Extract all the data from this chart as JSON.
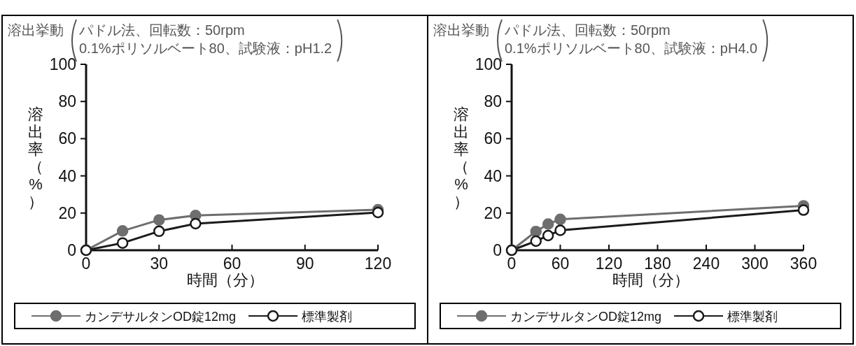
{
  "chart_data": [
    {
      "type": "line",
      "title": "溶出挙動",
      "subtitle": "パドル法、回転数：50rpm\n0.1%ポリソルベート80、試験液：pH1.2",
      "xlabel": "時間（分）",
      "ylabel": "溶出率（%）",
      "xlim": [
        0,
        120
      ],
      "xticks": [
        0,
        30,
        60,
        90,
        120
      ],
      "ylim": [
        0,
        100
      ],
      "yticks": [
        0,
        20,
        40,
        60,
        80,
        100
      ],
      "grid": false,
      "legend": "bottom",
      "marker": "circle",
      "line_style": "solid",
      "x": [
        0,
        15,
        30,
        45,
        120
      ],
      "series": [
        {
          "name": "カンデサルタンOD錠12mg",
          "color": "#6e6e6e",
          "values": [
            0,
            10.4,
            16.3,
            18.7,
            21.8
          ]
        },
        {
          "name": "標準製剤",
          "color": "#1a1a1a",
          "values": [
            0,
            3.9,
            10.2,
            14.3,
            20.3
          ]
        }
      ]
    },
    {
      "type": "line",
      "title": "溶出挙動",
      "subtitle": "パドル法、回転数：50rpm\n0.1%ポリソルベート80、試験液：pH4.0",
      "xlabel": "時間（分）",
      "ylabel": "溶出率（%）",
      "xlim": [
        0,
        360
      ],
      "xticks": [
        0,
        60,
        120,
        180,
        240,
        300,
        360
      ],
      "ylim": [
        0,
        100
      ],
      "yticks": [
        0,
        20,
        40,
        60,
        80,
        100
      ],
      "grid": false,
      "legend": "bottom",
      "marker": "circle",
      "line_style": "solid",
      "x": [
        0,
        30,
        45,
        60,
        360
      ],
      "series": [
        {
          "name": "カンデサルタンOD錠12mg",
          "color": "#6e6e6e",
          "values": [
            0,
            10.1,
            14.1,
            16.6,
            23.9
          ]
        },
        {
          "name": "標準製剤",
          "color": "#1a1a1a",
          "values": [
            0,
            4.9,
            7.9,
            10.7,
            21.6
          ]
        }
      ]
    }
  ]
}
